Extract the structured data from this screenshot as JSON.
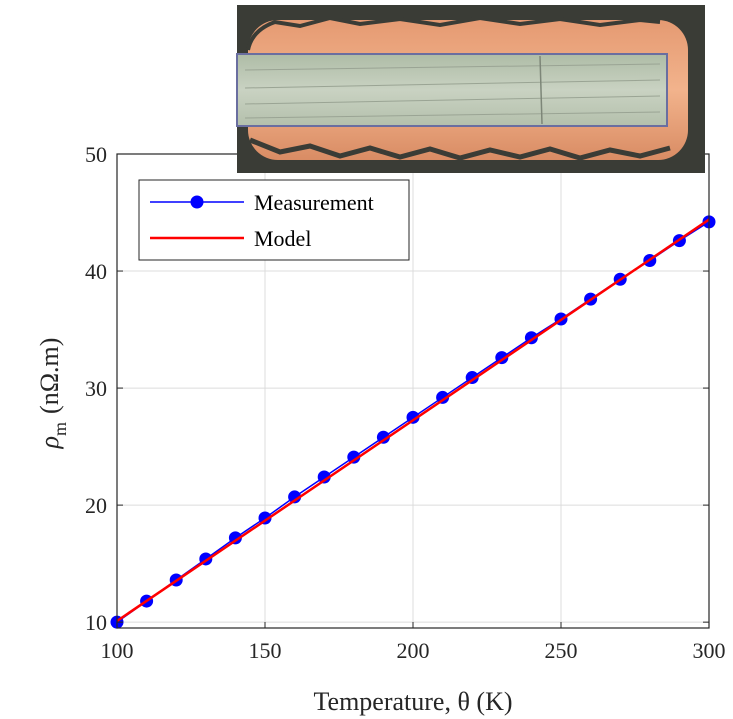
{
  "chart_data": {
    "type": "line",
    "xlabel": "Temperature, θ (K)",
    "ylabel_symbol": "ρ",
    "ylabel_subscript": "m",
    "ylabel_unit": "(nΩ.m)",
    "xlim": [
      100,
      300
    ],
    "ylim": [
      9.5,
      50
    ],
    "xticks": [
      100,
      150,
      200,
      250,
      300
    ],
    "yticks": [
      10,
      20,
      30,
      40,
      50
    ],
    "grid": true,
    "legend_position": "top-left",
    "series": [
      {
        "name": "Measurement",
        "style": "line-with-markers",
        "color": "#0000ff",
        "x": [
          100,
          110,
          120,
          130,
          140,
          150,
          160,
          170,
          180,
          190,
          200,
          210,
          220,
          230,
          240,
          250,
          260,
          270,
          280,
          290,
          300
        ],
        "y": [
          10.0,
          11.8,
          13.6,
          15.4,
          17.2,
          18.9,
          20.7,
          22.4,
          24.1,
          25.8,
          27.5,
          29.2,
          30.9,
          32.6,
          34.3,
          35.9,
          37.6,
          39.3,
          40.9,
          42.6,
          44.2
        ]
      },
      {
        "name": "Model",
        "style": "line",
        "color": "#ff0000",
        "x": [
          100,
          300
        ],
        "y": [
          10.1,
          44.4
        ]
      }
    ],
    "inset_image": "micrograph-of-copper-clad-conductor-cross-section"
  }
}
